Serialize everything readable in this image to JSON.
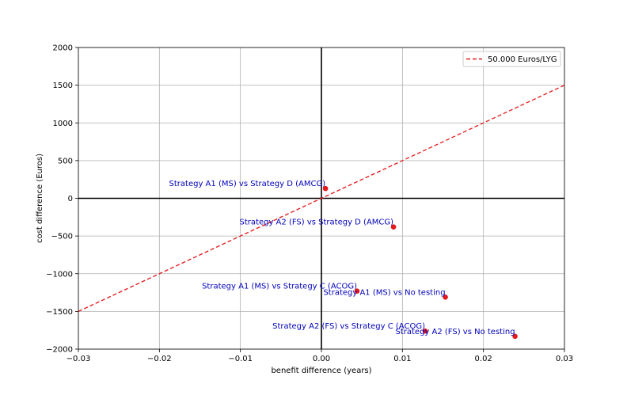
{
  "chart_data": {
    "type": "scatter",
    "title": "",
    "xlabel": "benefit difference (years)",
    "ylabel": "cost difference (Euros)",
    "xlim": [
      -0.03,
      0.03
    ],
    "ylim": [
      -2000,
      2000
    ],
    "grid": true,
    "legend_position": "top-right",
    "x_ticks": [
      -0.03,
      -0.02,
      -0.01,
      0.0,
      0.01,
      0.02,
      0.03
    ],
    "x_tick_labels": [
      "−0.03",
      "−0.02",
      "−0.01",
      "0.00",
      "0.01",
      "0.02",
      "0.03"
    ],
    "y_ticks": [
      -2000,
      -1500,
      -1000,
      -500,
      0,
      500,
      1000,
      1500,
      2000
    ],
    "y_tick_labels": [
      "−2000",
      "−1500",
      "−1000",
      "−500",
      "0",
      "500",
      "1000",
      "1500",
      "2000"
    ],
    "threshold_line": {
      "name": "50.000 Euros/LYG",
      "slope": 50000,
      "color": "#e41a1c",
      "style": "dashed"
    },
    "points": [
      {
        "label": "Strategy A1 (MS) vs Strategy D (AMCG)",
        "x": 0.0005,
        "y": 130,
        "label_anchor": "end"
      },
      {
        "label": "Strategy A2 (FS) vs Strategy D (AMCG)",
        "x": 0.0089,
        "y": -380,
        "label_anchor": "end"
      },
      {
        "label": "Strategy A1 (MS) vs Strategy C (ACOG)",
        "x": 0.0044,
        "y": -1230,
        "label_anchor": "end"
      },
      {
        "label": "Strategy A1 (MS) vs No testing",
        "x": 0.0153,
        "y": -1310,
        "label_anchor": "end"
      },
      {
        "label": "Strategy A2 (FS) vs Strategy C (ACOG)",
        "x": 0.0128,
        "y": -1760,
        "label_anchor": "end"
      },
      {
        "label": "Strategy A2 (FS) vs No testing",
        "x": 0.0239,
        "y": -1830,
        "label_anchor": "end"
      }
    ],
    "point_color": "#e41a1c",
    "annotation_color": "#0000bb"
  }
}
